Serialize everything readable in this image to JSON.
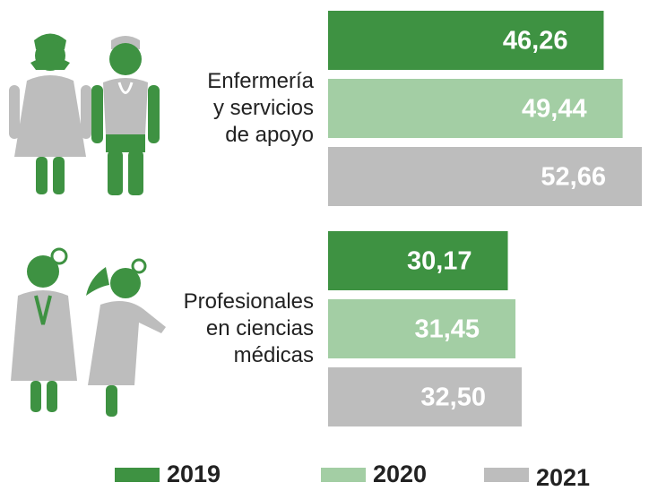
{
  "chart_data": {
    "type": "bar",
    "orientation": "horizontal",
    "categories": [
      "Enfermería\ny servicios\nde apoyo",
      "Profesionales\nen ciencias\nmédicas"
    ],
    "series": [
      {
        "name": "2019",
        "color": "#3e9242",
        "values": [
          46.26,
          30.17
        ],
        "value_labels": [
          "46,26",
          "30,17"
        ]
      },
      {
        "name": "2020",
        "color": "#a3cea4",
        "values": [
          49.44,
          31.45
        ],
        "value_labels": [
          "49,44",
          "31,45"
        ]
      },
      {
        "name": "2021",
        "color": "#bdbdbd",
        "values": [
          52.66,
          32.5
        ],
        "value_labels": [
          "52,66",
          "32,50"
        ]
      }
    ]
  }
}
